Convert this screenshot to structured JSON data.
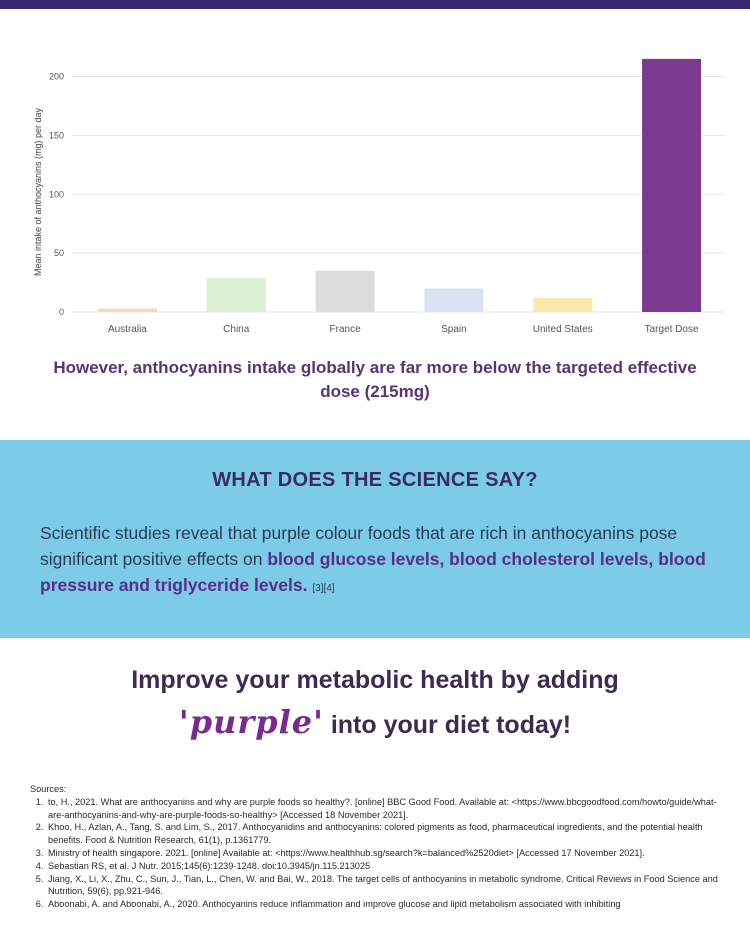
{
  "chart_data": {
    "type": "bar",
    "categories": [
      "Australia",
      "China",
      "France",
      "Spain",
      "United States",
      "Target Dose"
    ],
    "values": [
      3,
      29,
      35,
      20,
      12,
      215
    ],
    "colors": [
      "#f5d9c4",
      "#dcefd4",
      "#dcdcdc",
      "#d9e3f3",
      "#fbe8ad",
      "#7b3990"
    ],
    "ylabel": "Mean intake of anthocyanins (mg) per day",
    "yticks": [
      0,
      50,
      100,
      150,
      200
    ],
    "ylim": [
      0,
      220
    ],
    "grid": true
  },
  "caption": "However, anthocyanins intake globally are far more below the targeted effective dose (215mg)",
  "science": {
    "heading": "WHAT DOES THE SCIENCE SAY?",
    "body_plain": "Scientific studies reveal that purple colour foods that are rich in anthocyanins pose significant positive effects on ",
    "body_highlight": "blood glucose levels, blood cholesterol levels, blood pressure and triglyceride levels.",
    "refs": "[3][4]"
  },
  "cta": {
    "line1": "Improve your metabolic health by adding",
    "purple_word": "'purple'",
    "line2_rest": " into your diet today!"
  },
  "sources": {
    "title": "Sources:",
    "items": [
      "to, H., 2021. What are anthocyanins and why are purple foods so healthy?. [online] BBC Good Food. Available at: <https://www.bbcgoodfood.com/howto/guide/what-are-anthocyanins-and-why-are-purple-foods-so-healthy> [Accessed 18 November 2021].",
      "Khoo, H., Azlan, A., Tang, S. and Lim, S., 2017. Anthocyanidins and anthocyanins: colored pigments as food, pharmaceutical ingredients, and the potential health benefits. Food & Nutrition Research, 61(1), p.1361779.",
      "Ministry of health singapore. 2021. [online] Available at: <https://www.healthhub.sg/search?k=balanced%2520diet> [Accessed 17 November 2021].",
      "Sebastian RS, et al. J Nutr. 2015;145(6):1239-1248. doi:10.3945/jn.115.213025",
      "Jiang, X., Li, X., Zhu, C., Sun, J., Tian, L., Chen, W. and Bai, W., 2018. The target cells of anthocyanins in metabolic syndrome. Critical Reviews in Food Science and Nutrition, 59(6), pp.921-946.",
      "Aboonabi, A. and Aboonabi, A., 2020. Anthocyanins reduce inflammation and improve glucose and lipid metabolism associated with inhibiting"
    ]
  }
}
